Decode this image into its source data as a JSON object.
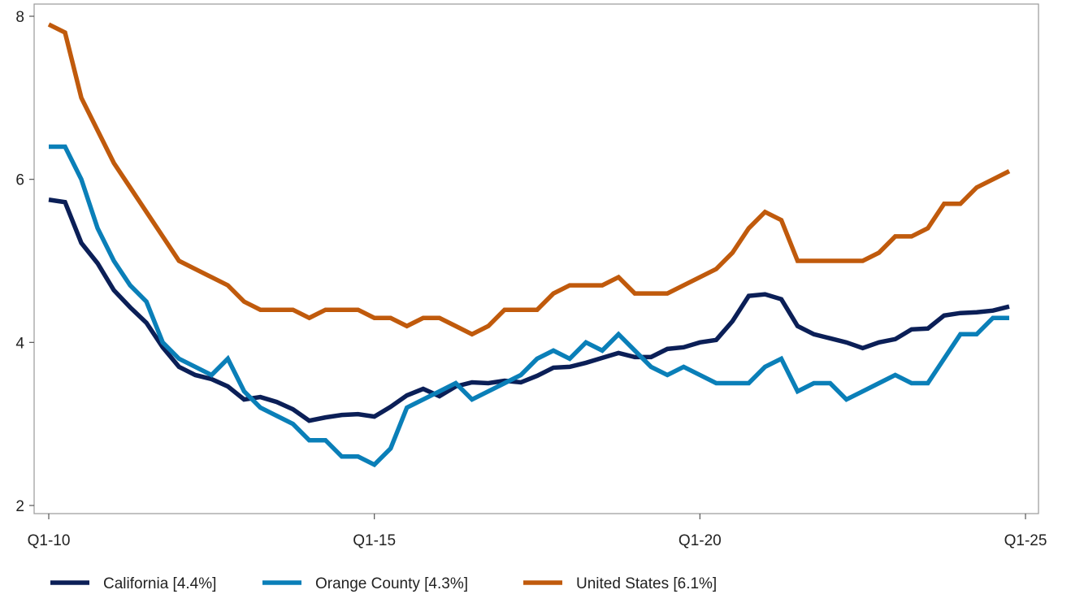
{
  "chart_data": {
    "type": "line",
    "title": "",
    "xlabel": "",
    "ylabel": "",
    "x_ticks": [
      "Q1-10",
      "Q1-15",
      "Q1-20",
      "Q1-25"
    ],
    "y_ticks": [
      "2",
      "4",
      "6",
      "8"
    ],
    "ylim": [
      2,
      8
    ],
    "xlim_quarters": [
      "Q1-10",
      "Q1-25"
    ],
    "grid": false,
    "legend_position": "bottom",
    "x": [
      "Q1-10",
      "Q2-10",
      "Q3-10",
      "Q4-10",
      "Q1-11",
      "Q2-11",
      "Q3-11",
      "Q4-11",
      "Q1-12",
      "Q2-12",
      "Q3-12",
      "Q4-12",
      "Q1-13",
      "Q2-13",
      "Q3-13",
      "Q4-13",
      "Q1-14",
      "Q2-14",
      "Q3-14",
      "Q4-14",
      "Q1-15",
      "Q2-15",
      "Q3-15",
      "Q4-15",
      "Q1-16",
      "Q2-16",
      "Q3-16",
      "Q4-16",
      "Q1-17",
      "Q2-17",
      "Q3-17",
      "Q4-17",
      "Q1-18",
      "Q2-18",
      "Q3-18",
      "Q4-18",
      "Q1-19",
      "Q2-19",
      "Q3-19",
      "Q4-19",
      "Q1-20",
      "Q2-20",
      "Q3-20",
      "Q4-20",
      "Q1-21",
      "Q2-21",
      "Q3-21",
      "Q4-21",
      "Q1-22",
      "Q2-22",
      "Q3-22",
      "Q4-22",
      "Q1-23",
      "Q2-23",
      "Q3-23",
      "Q4-23",
      "Q1-24",
      "Q2-24",
      "Q3-24",
      "Q4-24"
    ],
    "series": [
      {
        "name": "California [4.4%]",
        "color": "#0b1f57",
        "values": [
          5.75,
          5.72,
          5.22,
          4.97,
          4.64,
          4.43,
          4.24,
          3.94,
          3.7,
          3.6,
          3.55,
          3.46,
          3.3,
          3.33,
          3.27,
          3.18,
          3.04,
          3.08,
          3.11,
          3.12,
          3.09,
          3.21,
          3.35,
          3.43,
          3.34,
          3.46,
          3.51,
          3.5,
          3.53,
          3.51,
          3.59,
          3.69,
          3.7,
          3.75,
          3.81,
          3.87,
          3.82,
          3.82,
          3.92,
          3.94,
          4.0,
          4.03,
          4.26,
          4.57,
          4.59,
          4.53,
          4.2,
          4.1,
          4.05,
          4.0,
          3.93,
          4.0,
          4.04,
          4.16,
          4.17,
          4.33,
          4.36,
          4.37,
          4.39,
          4.44
        ]
      },
      {
        "name": "Orange County [4.3%]",
        "color": "#0a7fb8",
        "values": [
          6.4,
          6.4,
          6.0,
          5.4,
          5.0,
          4.7,
          4.5,
          4.0,
          3.8,
          3.7,
          3.6,
          3.8,
          3.4,
          3.2,
          3.1,
          3.0,
          2.8,
          2.8,
          2.6,
          2.6,
          2.5,
          2.7,
          3.2,
          3.3,
          3.4,
          3.5,
          3.3,
          3.4,
          3.5,
          3.6,
          3.8,
          3.9,
          3.8,
          4.0,
          3.9,
          4.1,
          3.9,
          3.7,
          3.6,
          3.7,
          3.6,
          3.5,
          3.5,
          3.5,
          3.7,
          3.8,
          3.4,
          3.5,
          3.5,
          3.3,
          3.4,
          3.5,
          3.6,
          3.5,
          3.5,
          3.8,
          4.1,
          4.1,
          4.3,
          4.3
        ]
      },
      {
        "name": "United States [6.1%]",
        "color": "#c05a0c",
        "values": [
          7.9,
          7.8,
          7.0,
          6.6,
          6.2,
          5.9,
          5.6,
          5.3,
          5.0,
          4.9,
          4.8,
          4.7,
          4.5,
          4.4,
          4.4,
          4.4,
          4.3,
          4.4,
          4.4,
          4.4,
          4.3,
          4.3,
          4.2,
          4.3,
          4.3,
          4.2,
          4.1,
          4.2,
          4.4,
          4.4,
          4.4,
          4.6,
          4.7,
          4.7,
          4.7,
          4.8,
          4.6,
          4.6,
          4.6,
          4.7,
          4.8,
          4.9,
          5.1,
          5.4,
          5.6,
          5.5,
          5.0,
          5.0,
          5.0,
          5.0,
          5.0,
          5.1,
          5.3,
          5.3,
          5.4,
          5.7,
          5.7,
          5.9,
          6.0,
          6.1
        ]
      }
    ]
  }
}
